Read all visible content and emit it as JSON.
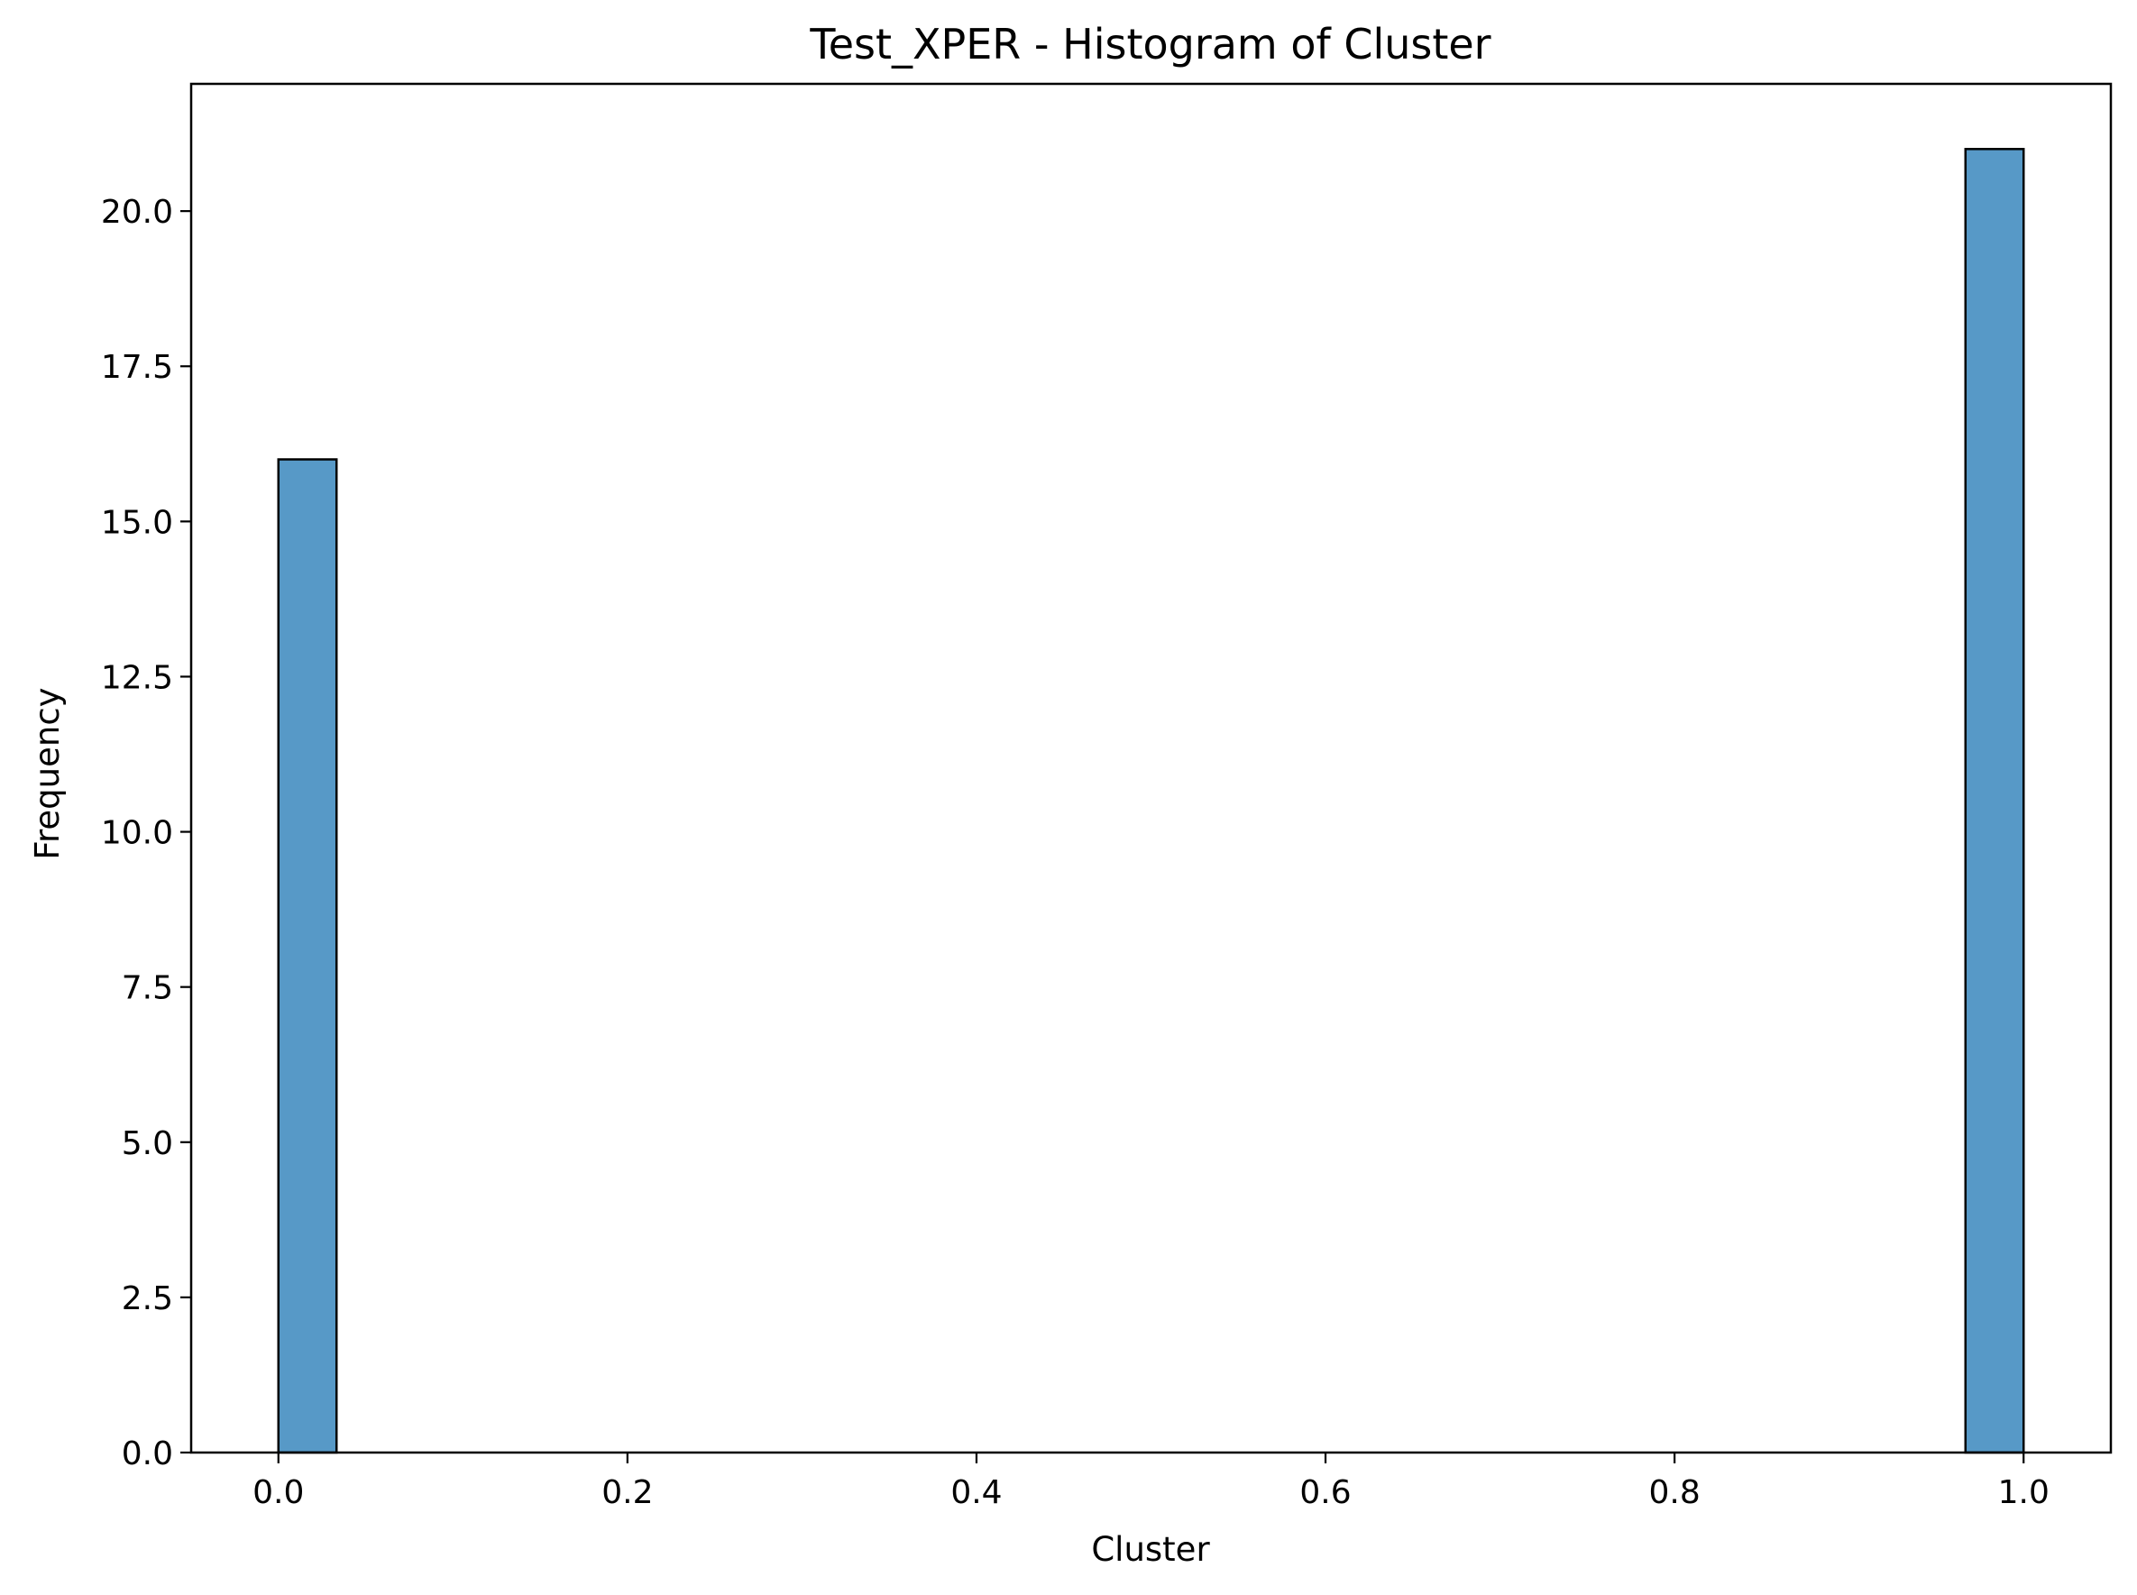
{
  "chart_data": {
    "type": "bar",
    "title": "Test_XPER - Histogram of Cluster",
    "xlabel": "Cluster",
    "ylabel": "Frequency",
    "xlim": [
      -0.05,
      1.05
    ],
    "ylim": [
      0,
      22.05
    ],
    "x_ticks": [
      "0.0",
      "0.2",
      "0.4",
      "0.6",
      "0.8",
      "1.0"
    ],
    "x_tick_values": [
      0.0,
      0.2,
      0.4,
      0.6,
      0.8,
      1.0
    ],
    "y_ticks": [
      "0.0",
      "2.5",
      "5.0",
      "7.5",
      "10.0",
      "12.5",
      "15.0",
      "17.5",
      "20.0"
    ],
    "y_tick_values": [
      0.0,
      2.5,
      5.0,
      7.5,
      10.0,
      12.5,
      15.0,
      17.5,
      20.0
    ],
    "bins": [
      {
        "x0": 0.0,
        "x1": 0.0333,
        "count": 16
      },
      {
        "x0": 0.9667,
        "x1": 1.0,
        "count": 21
      }
    ],
    "grid": false,
    "bar_color": "#5799c7",
    "edge_color": "#000000"
  }
}
